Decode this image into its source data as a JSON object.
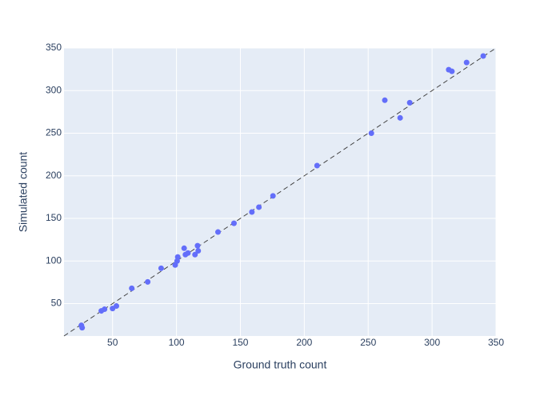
{
  "chart_data": {
    "type": "scatter",
    "x_label": "Ground truth count",
    "y_label": "Simulated count",
    "x": [
      25.6,
      26.2,
      41.2,
      43.7,
      50,
      53,
      65,
      77.5,
      88,
      99,
      100.5,
      101,
      106,
      107,
      109,
      114.5,
      116.5,
      117,
      132.5,
      145,
      159,
      164.5,
      175.5,
      210,
      252.5,
      263,
      275,
      282.5,
      313,
      315.5,
      327,
      340
    ],
    "y": [
      24.5,
      21.7,
      41.5,
      43.4,
      44.3,
      47.2,
      68,
      75.5,
      91.5,
      95.3,
      100,
      104.7,
      115,
      107.5,
      109.4,
      107.5,
      118,
      112,
      134,
      144.3,
      157.5,
      163.2,
      176.4,
      212,
      250,
      288.7,
      268,
      285.8,
      324.5,
      322.6,
      333,
      340.6
    ],
    "color": "#636efa",
    "xlim": [
      12,
      350
    ],
    "ylim": [
      12,
      350
    ],
    "xticks": [
      50,
      100,
      150,
      200,
      250,
      300,
      350
    ],
    "yticks": [
      50,
      100,
      150,
      200,
      250,
      300,
      350
    ],
    "grid": true
  }
}
